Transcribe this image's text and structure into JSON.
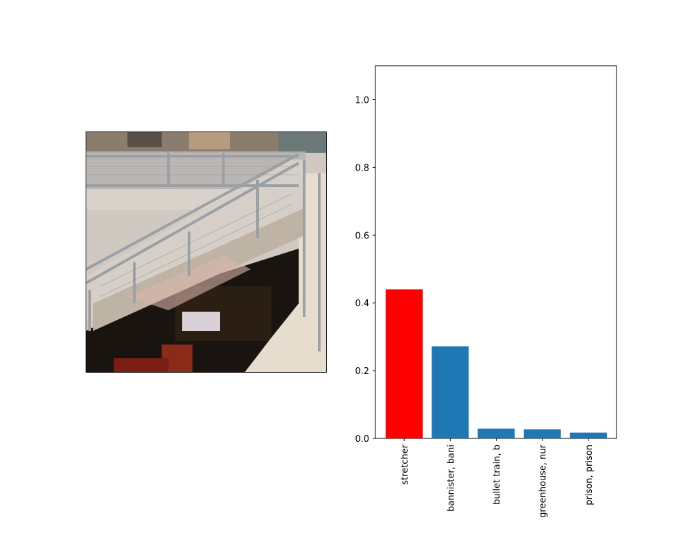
{
  "image_panel": {
    "description_icon": "staircase-photo"
  },
  "chart_data": {
    "type": "bar",
    "categories": [
      "stretcher",
      "bannister, bani",
      "bullet train, b",
      "greenhouse, nur",
      "prison, prison"
    ],
    "values": [
      0.44,
      0.272,
      0.029,
      0.027,
      0.017
    ],
    "colors": [
      "#ff0000",
      "#1f77b4",
      "#1f77b4",
      "#1f77b4",
      "#1f77b4"
    ],
    "ylim": [
      0,
      1.1
    ],
    "yticks": [
      0.0,
      0.2,
      0.4,
      0.6,
      0.8,
      1.0
    ],
    "ytick_labels": [
      "0.0",
      "0.2",
      "0.4",
      "0.6",
      "0.8",
      "1.0"
    ],
    "grid": false,
    "title": "",
    "xlabel": "",
    "ylabel": ""
  }
}
